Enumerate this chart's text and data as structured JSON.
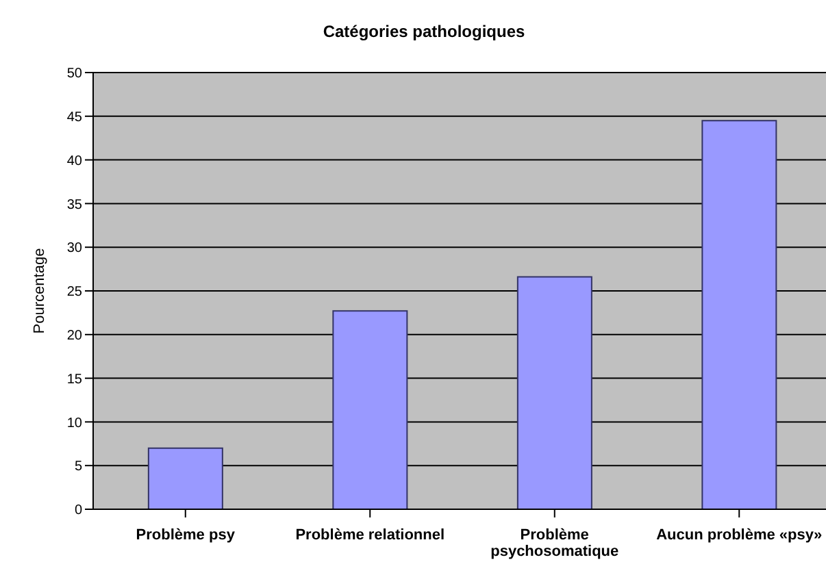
{
  "chart_data": {
    "type": "bar",
    "title": "Catégories pathologiques",
    "ylabel": "Pourcentage",
    "categories": [
      "Problème psy",
      "Problème relationnel",
      "Problème psychosomatique",
      "Aucun problème «psy»"
    ],
    "values": [
      7,
      22.7,
      26.6,
      44.5
    ],
    "color": "#9999ff",
    "ylim": [
      0,
      50
    ],
    "yticks": [
      0,
      5,
      10,
      15,
      20,
      25,
      30,
      35,
      40,
      45,
      50
    ],
    "grid": "y"
  }
}
